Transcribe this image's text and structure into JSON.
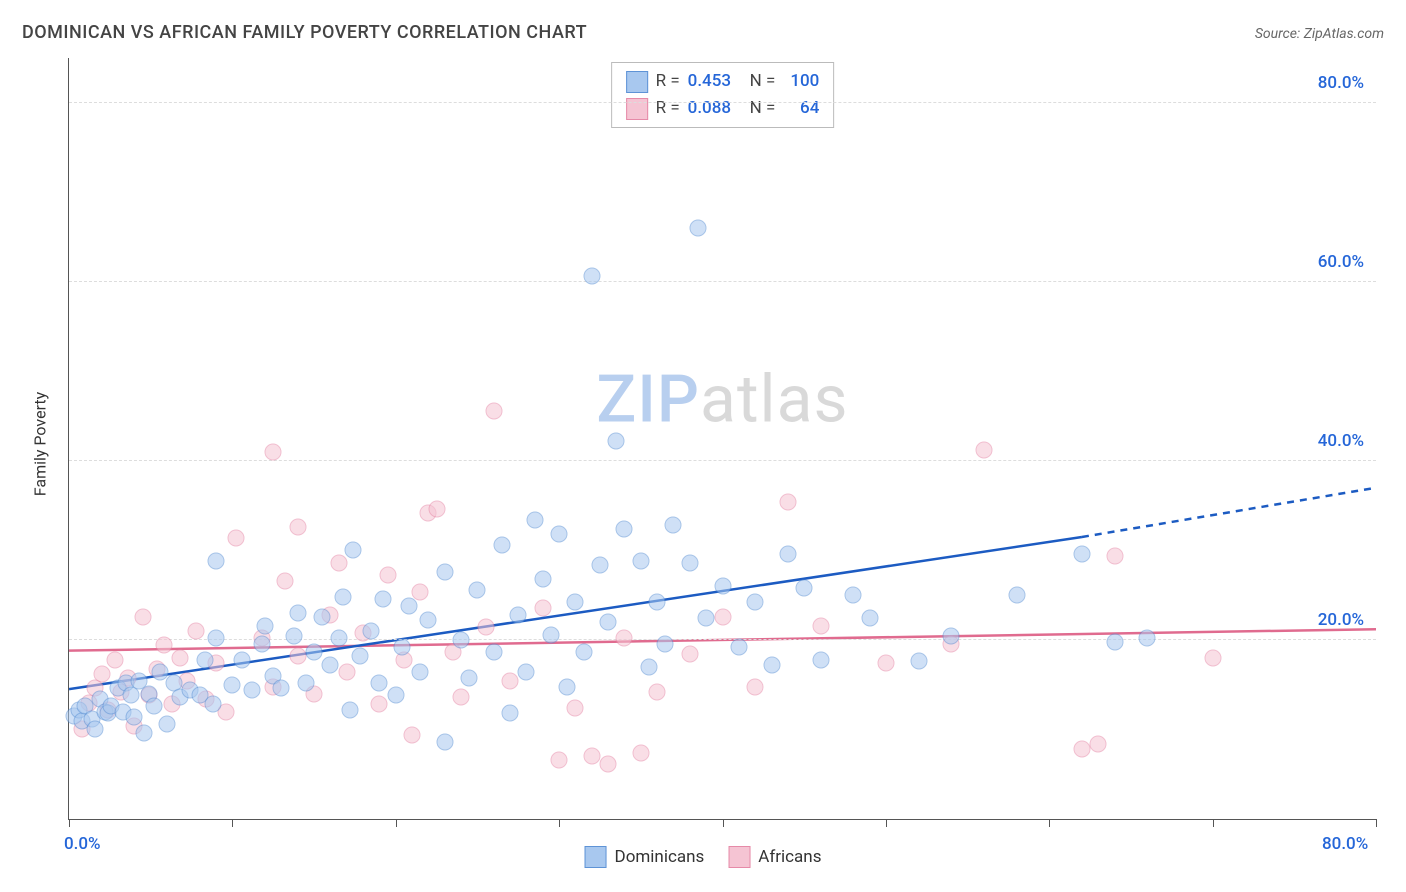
{
  "title": "DOMINICAN VS AFRICAN FAMILY POVERTY CORRELATION CHART",
  "source_label": "Source: ZipAtlas.com",
  "watermark": {
    "part1": "ZIP",
    "part2": "atlas"
  },
  "ylabel": "Family Poverty",
  "chart": {
    "type": "scatter",
    "background_color": "#ffffff",
    "grid_color": "#dddddd",
    "axis_color": "#555555",
    "xlim": [
      0,
      80
    ],
    "ylim": [
      0,
      85
    ],
    "grid_y": [
      20,
      40,
      60,
      80
    ],
    "y_tick_labels": {
      "20": "20.0%",
      "40": "40.0%",
      "60": "60.0%",
      "80": "80.0%"
    },
    "x_ticks": [
      0,
      10,
      20,
      30,
      40,
      50,
      60,
      70,
      80
    ],
    "x_minmax_labels": {
      "min": "0.0%",
      "max": "80.0%"
    },
    "point_radius": 8.5,
    "point_opacity": 0.55,
    "series": {
      "dominicans": {
        "label": "Dominicans",
        "fill": "#a8c8ef",
        "stroke": "#5e93d6",
        "R": "0.453",
        "N": "100",
        "trend": {
          "color": "#1c5bc2",
          "width": 2.5,
          "x0": 0,
          "y0": 14.5,
          "x1_solid": 62,
          "y1_solid": 31.5,
          "x1": 80,
          "y1": 37
        },
        "points": [
          [
            0.3,
            11.5
          ],
          [
            0.6,
            12.2
          ],
          [
            0.8,
            11.0
          ],
          [
            1.0,
            12.6
          ],
          [
            1.4,
            11.2
          ],
          [
            1.6,
            10.0
          ],
          [
            1.9,
            13.4
          ],
          [
            2.2,
            12.0
          ],
          [
            2.4,
            11.8
          ],
          [
            2.6,
            12.6
          ],
          [
            3.0,
            14.6
          ],
          [
            3.3,
            12.0
          ],
          [
            3.5,
            15.2
          ],
          [
            3.8,
            13.8
          ],
          [
            4.0,
            11.4
          ],
          [
            4.3,
            15.4
          ],
          [
            4.6,
            9.6
          ],
          [
            4.9,
            14.0
          ],
          [
            5.2,
            12.6
          ],
          [
            5.6,
            16.4
          ],
          [
            6.0,
            10.6
          ],
          [
            6.4,
            15.2
          ],
          [
            6.8,
            13.6
          ],
          [
            7.4,
            14.4
          ],
          [
            8.0,
            13.8
          ],
          [
            8.3,
            17.8
          ],
          [
            8.8,
            12.8
          ],
          [
            9.0,
            20.2
          ],
          [
            9.0,
            28.8
          ],
          [
            10.0,
            15.0
          ],
          [
            10.6,
            17.8
          ],
          [
            11.2,
            14.4
          ],
          [
            11.8,
            19.6
          ],
          [
            12.0,
            21.6
          ],
          [
            12.5,
            16.0
          ],
          [
            13.0,
            14.6
          ],
          [
            13.8,
            20.4
          ],
          [
            14.0,
            23.0
          ],
          [
            14.5,
            15.2
          ],
          [
            15.0,
            18.6
          ],
          [
            15.5,
            22.6
          ],
          [
            16.0,
            17.2
          ],
          [
            16.5,
            20.2
          ],
          [
            16.8,
            24.8
          ],
          [
            17.2,
            12.2
          ],
          [
            17.4,
            30.0
          ],
          [
            17.8,
            18.2
          ],
          [
            18.5,
            21.0
          ],
          [
            19.0,
            15.2
          ],
          [
            19.2,
            24.6
          ],
          [
            20.0,
            13.8
          ],
          [
            20.4,
            19.2
          ],
          [
            20.8,
            23.8
          ],
          [
            21.5,
            16.4
          ],
          [
            22.0,
            22.2
          ],
          [
            23.0,
            27.6
          ],
          [
            23.0,
            8.6
          ],
          [
            24.0,
            20.0
          ],
          [
            24.5,
            15.8
          ],
          [
            25.0,
            25.6
          ],
          [
            26.0,
            18.6
          ],
          [
            26.5,
            30.6
          ],
          [
            27.0,
            11.8
          ],
          [
            27.5,
            22.8
          ],
          [
            28.0,
            16.4
          ],
          [
            28.5,
            33.4
          ],
          [
            29.0,
            26.8
          ],
          [
            29.5,
            20.6
          ],
          [
            30.0,
            31.8
          ],
          [
            30.5,
            14.8
          ],
          [
            31.0,
            24.2
          ],
          [
            31.5,
            18.6
          ],
          [
            32.0,
            60.6
          ],
          [
            32.5,
            28.4
          ],
          [
            33.0,
            22.0
          ],
          [
            33.5,
            42.2
          ],
          [
            34.0,
            32.4
          ],
          [
            35.0,
            28.8
          ],
          [
            35.5,
            17.0
          ],
          [
            36.0,
            24.2
          ],
          [
            36.5,
            19.6
          ],
          [
            37.0,
            32.8
          ],
          [
            38.0,
            28.6
          ],
          [
            38.5,
            66.0
          ],
          [
            39.0,
            22.4
          ],
          [
            40.0,
            26.0
          ],
          [
            41.0,
            19.2
          ],
          [
            42.0,
            24.2
          ],
          [
            43.0,
            17.2
          ],
          [
            44.0,
            29.6
          ],
          [
            45.0,
            25.8
          ],
          [
            46.0,
            17.8
          ],
          [
            48.0,
            25.0
          ],
          [
            49.0,
            22.4
          ],
          [
            52.0,
            17.6
          ],
          [
            54.0,
            20.4
          ],
          [
            58.0,
            25.0
          ],
          [
            62.0,
            29.6
          ],
          [
            64.0,
            19.8
          ],
          [
            66.0,
            20.2
          ]
        ]
      },
      "africans": {
        "label": "Africans",
        "fill": "#f5c4d3",
        "stroke": "#e68aa8",
        "R": "0.088",
        "N": "64",
        "trend": {
          "color": "#e06b8f",
          "width": 2.5,
          "x0": 0,
          "y0": 18.8,
          "x1": 80,
          "y1": 21.2
        },
        "points": [
          [
            0.8,
            10.0
          ],
          [
            1.2,
            13.0
          ],
          [
            1.6,
            14.6
          ],
          [
            2.0,
            16.2
          ],
          [
            2.4,
            12.2
          ],
          [
            2.8,
            17.8
          ],
          [
            3.2,
            14.2
          ],
          [
            3.6,
            15.8
          ],
          [
            4.0,
            10.4
          ],
          [
            4.5,
            22.6
          ],
          [
            4.9,
            13.8
          ],
          [
            5.4,
            16.8
          ],
          [
            5.8,
            19.4
          ],
          [
            6.3,
            12.8
          ],
          [
            6.8,
            18.0
          ],
          [
            7.2,
            15.4
          ],
          [
            7.8,
            21.0
          ],
          [
            8.4,
            13.4
          ],
          [
            9.0,
            17.4
          ],
          [
            9.6,
            12.0
          ],
          [
            10.2,
            31.4
          ],
          [
            11.8,
            20.2
          ],
          [
            12.5,
            14.8
          ],
          [
            12.5,
            41.0
          ],
          [
            13.2,
            26.6
          ],
          [
            14.0,
            18.2
          ],
          [
            14.0,
            32.6
          ],
          [
            15.0,
            14.0
          ],
          [
            16.0,
            22.8
          ],
          [
            16.5,
            28.6
          ],
          [
            17.0,
            16.4
          ],
          [
            18.0,
            20.8
          ],
          [
            19.0,
            12.8
          ],
          [
            19.5,
            27.2
          ],
          [
            20.5,
            17.8
          ],
          [
            21.0,
            9.4
          ],
          [
            21.5,
            25.4
          ],
          [
            22.0,
            34.2
          ],
          [
            22.5,
            34.6
          ],
          [
            23.5,
            18.6
          ],
          [
            24.0,
            13.6
          ],
          [
            25.5,
            21.4
          ],
          [
            26.0,
            45.6
          ],
          [
            27.0,
            15.4
          ],
          [
            29.0,
            23.6
          ],
          [
            30.0,
            6.6
          ],
          [
            31.0,
            12.4
          ],
          [
            32.0,
            7.0
          ],
          [
            33.0,
            6.2
          ],
          [
            34.0,
            20.2
          ],
          [
            35.0,
            7.4
          ],
          [
            36.0,
            14.2
          ],
          [
            38.0,
            18.4
          ],
          [
            40.0,
            22.6
          ],
          [
            42.0,
            14.8
          ],
          [
            44.0,
            35.4
          ],
          [
            46.0,
            21.6
          ],
          [
            50.0,
            17.4
          ],
          [
            54.0,
            19.6
          ],
          [
            56.0,
            41.2
          ],
          [
            62.0,
            7.8
          ],
          [
            63.0,
            8.4
          ],
          [
            64.0,
            29.4
          ],
          [
            70.0,
            18.0
          ]
        ]
      }
    }
  },
  "legend_top": [
    {
      "series": "dominicans"
    },
    {
      "series": "africans"
    }
  ],
  "legend_bottom": [
    {
      "series": "dominicans"
    },
    {
      "series": "africans"
    }
  ]
}
